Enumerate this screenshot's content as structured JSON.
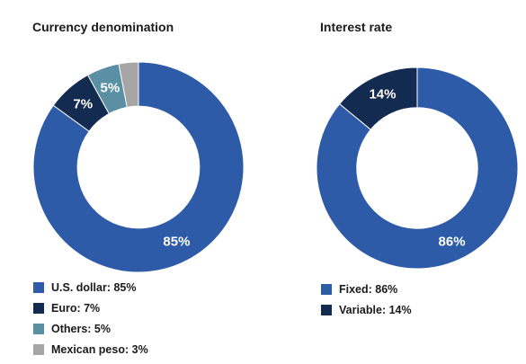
{
  "chart_data": [
    {
      "type": "pie",
      "title": "Currency denomination",
      "categories": [
        "U.S. dollar",
        "Euro",
        "Others",
        "Mexican peso"
      ],
      "values": [
        85,
        7,
        5,
        3
      ],
      "unit": "%",
      "colors": [
        "#2E5BA8",
        "#132B50",
        "#5A8FA4",
        "#A5A5A5"
      ],
      "data_labels": [
        "85%",
        "7%",
        "5%",
        ""
      ],
      "legend_entries": [
        "U.S. dollar: 85%",
        "Euro: 7%",
        "Others: 5%",
        "Mexican peso: 3%"
      ],
      "legend_position": "bottom-left"
    },
    {
      "type": "pie",
      "title": "Interest rate",
      "categories": [
        "Fixed",
        "Variable"
      ],
      "values": [
        86,
        14
      ],
      "unit": "%",
      "colors": [
        "#2E5BA8",
        "#132B50"
      ],
      "data_labels": [
        "86%",
        "14%"
      ],
      "legend_entries": [
        "Fixed: 86%",
        "Variable: 14%"
      ],
      "legend_position": "bottom-left"
    }
  ]
}
